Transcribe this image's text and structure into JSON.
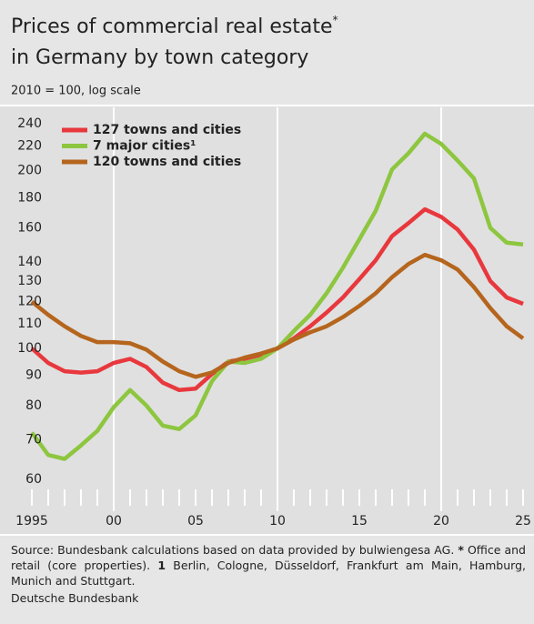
{
  "chart_data": {
    "type": "line",
    "title": [
      "Prices of commercial real estate",
      "in Germany by town category"
    ],
    "title_mark": "*",
    "subtitle": "2010 = 100, log scale",
    "x": [
      1995,
      1996,
      1997,
      1998,
      1999,
      2000,
      2001,
      2002,
      2003,
      2004,
      2005,
      2006,
      2007,
      2008,
      2009,
      2010,
      2011,
      2012,
      2013,
      2014,
      2015,
      2016,
      2017,
      2018,
      2019,
      2020,
      2021,
      2022,
      2023,
      2024,
      2025
    ],
    "series": [
      {
        "name": "127 towns and cities",
        "color": "#e8383d",
        "values": [
          100,
          94.5,
          91.5,
          91,
          91.5,
          94.5,
          96,
          93,
          87.5,
          85,
          85.5,
          90.5,
          95,
          96,
          97.5,
          100,
          104,
          109,
          115,
          122,
          131,
          141,
          155,
          163,
          172,
          167,
          159,
          147,
          130,
          122,
          119
        ]
      },
      {
        "name": "7 major cities¹",
        "color": "#8dc63f",
        "values": [
          72,
          66,
          65,
          68.5,
          72.5,
          79.5,
          85,
          80,
          74,
          73,
          77,
          88,
          95,
          94.5,
          96,
          100,
          107,
          114,
          124,
          137,
          153,
          171,
          201,
          214,
          231,
          222,
          208,
          194,
          160,
          151,
          150
        ]
      },
      {
        "name": "120 towns and cities",
        "color": "#b5651d",
        "values": [
          120,
          114,
          109,
          105,
          102.5,
          102.5,
          102,
          99.5,
          95,
          91.5,
          89.5,
          91,
          94.5,
          96.5,
          98,
          100,
          103.5,
          106.5,
          109,
          113,
          118,
          124,
          132,
          139,
          144,
          141,
          136,
          127,
          117,
          109,
          104
        ]
      }
    ],
    "xlim": [
      1995,
      2025
    ],
    "xticks": [
      {
        "value": 1995,
        "label": "1995"
      },
      {
        "value": 2000,
        "label": "00"
      },
      {
        "value": 2005,
        "label": "05"
      },
      {
        "value": 2010,
        "label": "10"
      },
      {
        "value": 2015,
        "label": "15"
      },
      {
        "value": 2020,
        "label": "20"
      },
      {
        "value": 2025,
        "label": "25"
      }
    ],
    "grid_x": [
      2000,
      2010,
      2020
    ],
    "ylim": [
      53,
      256
    ],
    "yticks": [
      60,
      70,
      80,
      90,
      100,
      110,
      120,
      130,
      140,
      160,
      180,
      200,
      220,
      240
    ],
    "log_scale": true,
    "legend": "top-left",
    "source": "Source: Bundesbank calculations based on data provided by bulwiengesa AG.",
    "note_mark": "*",
    "note": "Office and retail (core properties).",
    "note2_mark": "1",
    "note2": "Berlin, Cologne, Düsseldorf, Frankfurt am Main, Hamburg, Munich and Stuttgart.",
    "publisher": "Deutsche Bundesbank"
  }
}
